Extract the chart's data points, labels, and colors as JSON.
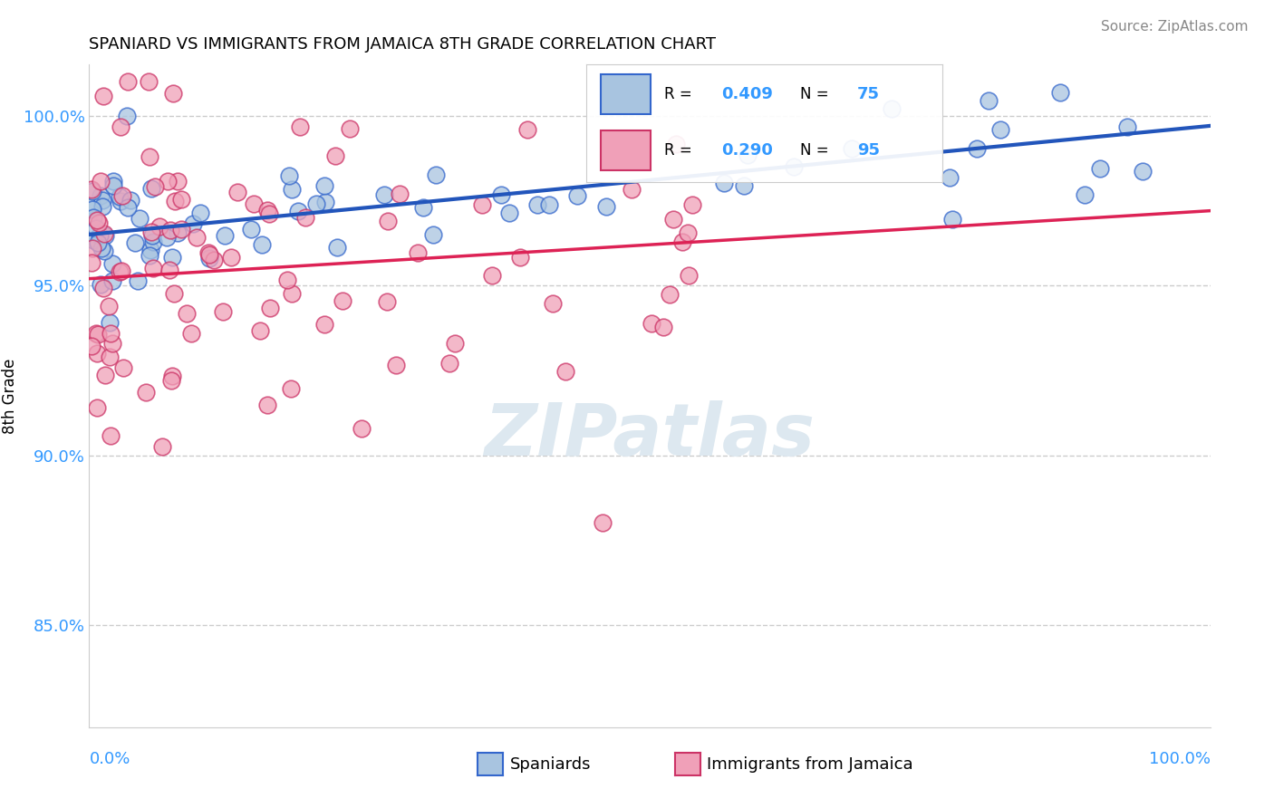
{
  "title": "SPANIARD VS IMMIGRANTS FROM JAMAICA 8TH GRADE CORRELATION CHART",
  "source": "Source: ZipAtlas.com",
  "ylabel": "8th Grade",
  "xlim": [
    0.0,
    100.0
  ],
  "ylim": [
    82.0,
    101.5
  ],
  "yticks": [
    85.0,
    90.0,
    95.0,
    100.0
  ],
  "ytick_labels": [
    "85.0%",
    "90.0%",
    "95.0%",
    "100.0%"
  ],
  "blue_R": "0.409",
  "blue_N": "75",
  "pink_R": "0.290",
  "pink_N": "95",
  "blue_fill_color": "#a8c4e0",
  "pink_fill_color": "#f0a0b8",
  "blue_edge_color": "#3366cc",
  "pink_edge_color": "#cc3366",
  "blue_line_color": "#2255bb",
  "pink_line_color": "#dd2255",
  "watermark_color": "#dde8f0",
  "grid_color": "#cccccc",
  "tick_label_color": "#3399ff",
  "blue_intercept": 96.5,
  "blue_slope": 0.032,
  "pink_intercept": 95.2,
  "pink_slope": 0.02
}
